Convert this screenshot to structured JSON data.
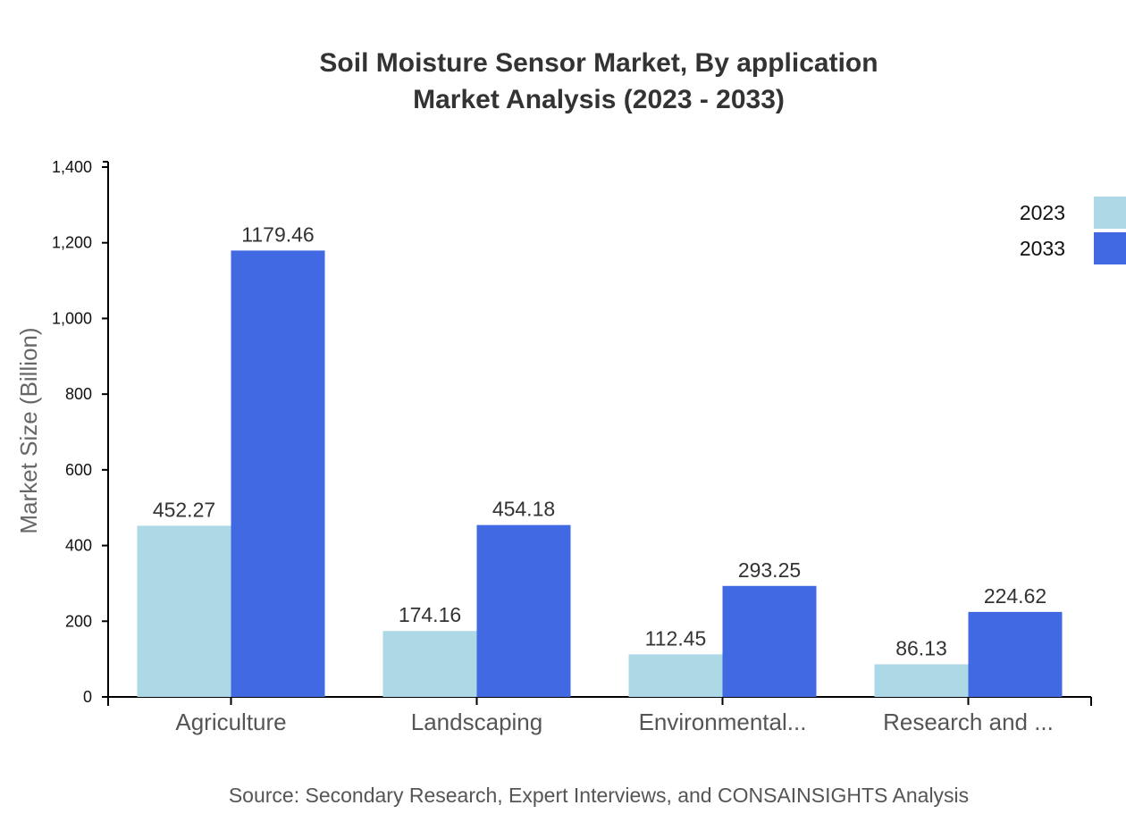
{
  "title": {
    "line1": "Soil Moisture Sensor Market, By application",
    "line2": "Market Analysis (2023 - 2033)"
  },
  "source": "Source: Secondary Research, Expert Interviews, and CONSAINSIGHTS Analysis",
  "colors": {
    "2023": "#add8e6",
    "2033": "#4169e1",
    "axis": "#000000"
  },
  "chart_data": {
    "type": "bar",
    "title": "Soil Moisture Sensor Market, By application Market Analysis (2023 - 2033)",
    "xlabel": "",
    "ylabel": "Market Size (Billion)",
    "ylim": [
      0,
      1400
    ],
    "yticks": [
      "0",
      "200",
      "400",
      "600",
      "800",
      "1,000",
      "1,200",
      "1,400"
    ],
    "categories": [
      "Agriculture",
      "Landscaping",
      "Environmental...",
      "Research and ..."
    ],
    "series": [
      {
        "name": "2023",
        "color": "#add8e6",
        "values": [
          452.27,
          174.16,
          112.45,
          86.13
        ]
      },
      {
        "name": "2033",
        "color": "#4169e1",
        "values": [
          1179.46,
          454.18,
          293.25,
          224.62
        ]
      }
    ],
    "legend": {
      "position": "top-right",
      "entries": [
        "2023",
        "2033"
      ]
    },
    "grid": false,
    "data_labels": true
  }
}
